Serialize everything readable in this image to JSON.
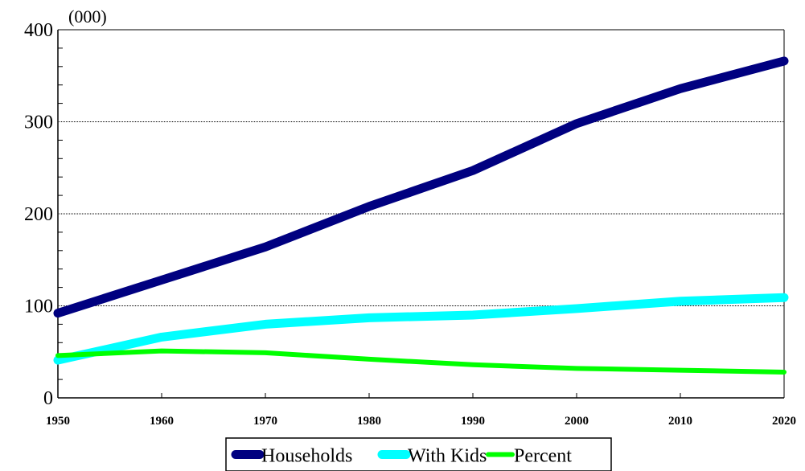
{
  "chart_data": {
    "type": "line",
    "unit_label": "(000)",
    "x": [
      1950,
      1960,
      1970,
      1980,
      1990,
      2000,
      2010,
      2020
    ],
    "x_tick_labels": [
      "1950",
      "1960",
      "1970",
      "1980",
      "1990",
      "2000",
      "2010",
      "2020"
    ],
    "y_tick_labels": [
      "0",
      "100",
      "200",
      "300",
      "400"
    ],
    "ylim": [
      0,
      400
    ],
    "xlim": [
      1950,
      2020
    ],
    "grid": "horizontal-dotted",
    "legend_position": "bottom",
    "series": [
      {
        "name": "Households",
        "color": "#000080",
        "values": [
          92,
          128,
          164,
          208,
          247,
          298,
          336,
          366
        ]
      },
      {
        "name": "With Kids",
        "color": "#00ffff",
        "values": [
          41,
          66,
          80,
          87,
          90,
          97,
          105,
          109
        ]
      },
      {
        "name": "Percent",
        "color": "#00ff00",
        "values": [
          46,
          51,
          49,
          42,
          36,
          32,
          30,
          28
        ]
      }
    ]
  }
}
